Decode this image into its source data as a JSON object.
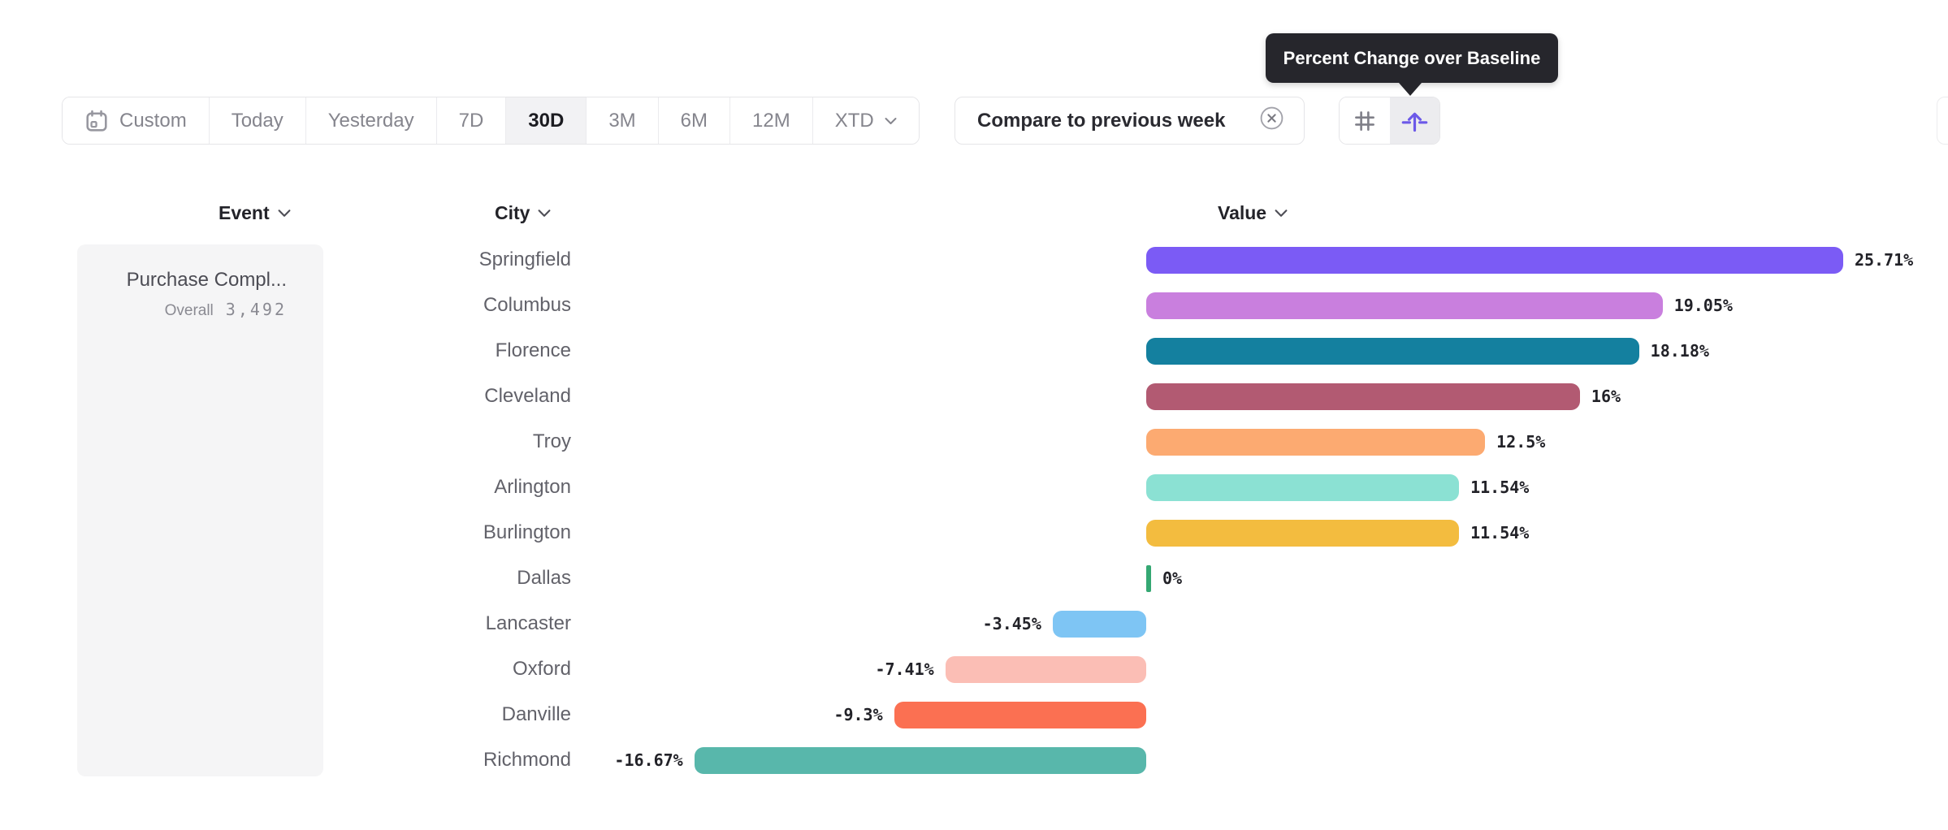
{
  "tooltip": {
    "text": "Percent Change over Baseline"
  },
  "toolbar": {
    "date_ranges": [
      {
        "label": "Custom",
        "icon": "calendar",
        "active": false,
        "has_chevron": false
      },
      {
        "label": "Today",
        "active": false,
        "has_chevron": false
      },
      {
        "label": "Yesterday",
        "active": false,
        "has_chevron": false
      },
      {
        "label": "7D",
        "active": false,
        "has_chevron": false
      },
      {
        "label": "30D",
        "active": true,
        "has_chevron": false
      },
      {
        "label": "3M",
        "active": false,
        "has_chevron": false
      },
      {
        "label": "6M",
        "active": false,
        "has_chevron": false
      },
      {
        "label": "12M",
        "active": false,
        "has_chevron": false
      },
      {
        "label": "XTD",
        "active": false,
        "has_chevron": true
      }
    ],
    "compare_button": {
      "label": "Compare to previous week",
      "icon": "close-circle"
    },
    "view_toggles": [
      {
        "icon": "number-grid",
        "active": false
      },
      {
        "icon": "percent-change-baseline",
        "active": true
      }
    ]
  },
  "columns": {
    "event": "Event",
    "city": "City",
    "value": "Value"
  },
  "event_panel": {
    "name": "Purchase Compl...",
    "overall_label": "Overall",
    "overall_value": "3,492"
  },
  "chart_data": {
    "type": "bar",
    "orientation": "horizontal",
    "title": "Percent Change over Baseline",
    "value_format": "percent",
    "xlim": [
      -20,
      29
    ],
    "grid": false,
    "legend": false,
    "categories": [
      "Springfield",
      "Columbus",
      "Florence",
      "Cleveland",
      "Troy",
      "Arlington",
      "Burlington",
      "Dallas",
      "Lancaster",
      "Oxford",
      "Danville",
      "Richmond"
    ],
    "values": [
      25.71,
      19.05,
      18.18,
      16,
      12.5,
      11.54,
      11.54,
      0,
      -3.45,
      -7.41,
      -9.3,
      -16.67
    ],
    "labels": [
      "25.71%",
      "19.05%",
      "18.18%",
      "16%",
      "12.5%",
      "11.54%",
      "11.54%",
      "0%",
      "-3.45%",
      "-7.41%",
      "-9.3%",
      "-16.67%"
    ],
    "colors": [
      "#7b5bf5",
      "#c97fde",
      "#14809f",
      "#b25a72",
      "#fcaa71",
      "#8be1d3",
      "#f3bc3f",
      "#35a873",
      "#7ec5f4",
      "#fbbeb5",
      "#fb7052",
      "#58b7ab"
    ],
    "accent_color": "#6c59e8",
    "zero_marker_color": "#35a873"
  }
}
